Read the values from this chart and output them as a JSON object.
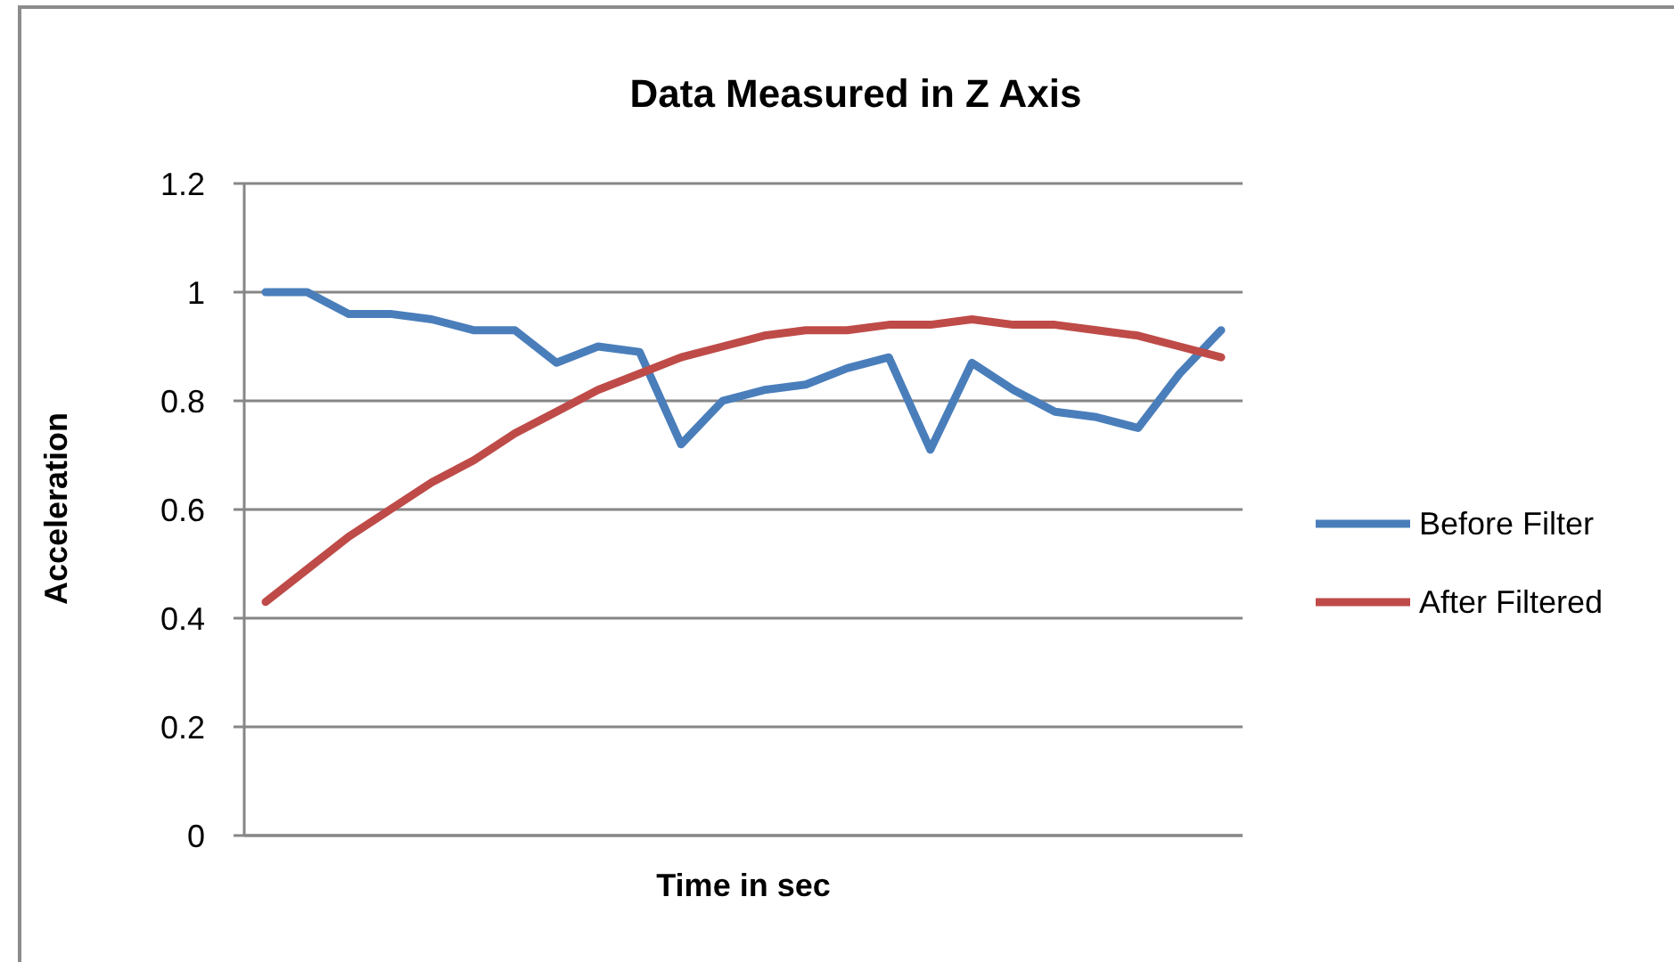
{
  "chart_data": {
    "type": "line",
    "title": "Data Measured in Z Axis",
    "xlabel": "Time in sec",
    "ylabel": "Acceleration",
    "categories": [
      null,
      null,
      null,
      null,
      null,
      null,
      null,
      null,
      null,
      null,
      null,
      null,
      null,
      null,
      null,
      null,
      null,
      null,
      null,
      null,
      null,
      null,
      null,
      null
    ],
    "series": [
      {
        "name": "Before Filter",
        "color": "#4a7ebb",
        "values": [
          1,
          1,
          0.96,
          0.96,
          0.95,
          0.93,
          0.93,
          0.87,
          0.9,
          0.89,
          0.72,
          0.8,
          0.82,
          0.83,
          0.86,
          0.88,
          0.71,
          0.87,
          0.82,
          0.78,
          0.77,
          0.75,
          0.85,
          0.93
        ]
      },
      {
        "name": "After Filtered",
        "color": "#be4b48",
        "values": [
          0.43,
          0.49,
          0.55,
          0.6,
          0.65,
          0.69,
          0.74,
          0.78,
          0.82,
          0.85,
          0.88,
          0.9,
          0.92,
          0.93,
          0.93,
          0.94,
          0.94,
          0.95,
          0.94,
          0.94,
          0.93,
          0.92,
          0.9,
          0.88
        ]
      }
    ],
    "ylim": [
      0,
      1.2
    ],
    "yticks": [
      0,
      0.2,
      0.4,
      0.6,
      0.8,
      1,
      1.2
    ],
    "grid": "y",
    "legend": "right",
    "tick_labels": "y",
    "marker": "none",
    "line_style": "solid"
  }
}
